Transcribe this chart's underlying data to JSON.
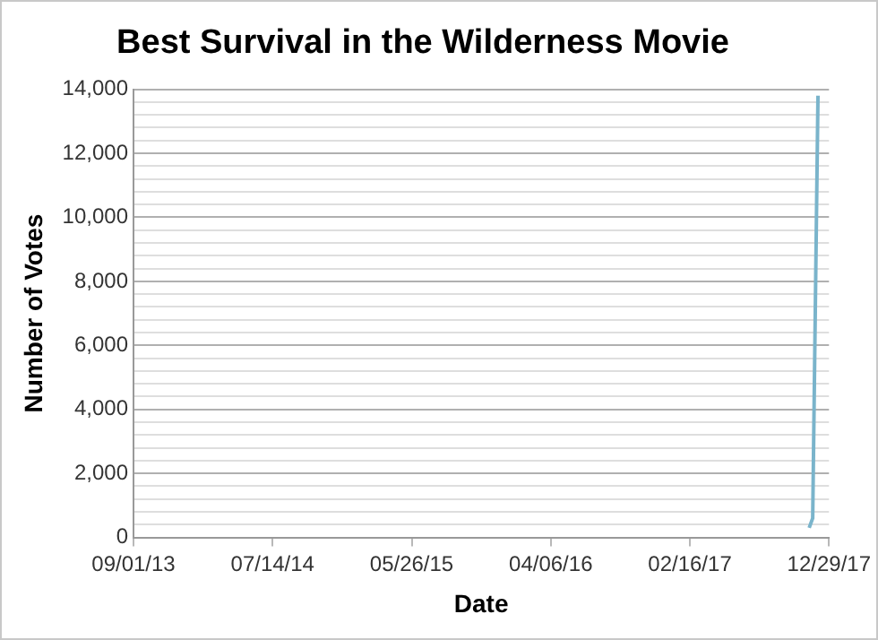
{
  "chart_data": {
    "type": "line",
    "title": "Best Survival in the Wilderness Movie",
    "xlabel": "Date",
    "ylabel": "Number of Votes",
    "x": [
      "2017-11-14",
      "2017-11-22",
      "2017-12-04"
    ],
    "series": [
      {
        "color": "#7ab4cb",
        "values": [
          300,
          600,
          13800
        ]
      }
    ],
    "xlim": [
      "2013-09-01",
      "2017-12-29"
    ],
    "xticks": [
      {
        "value": "2013-09-01",
        "label": "09/01/13"
      },
      {
        "value": "2014-07-14",
        "label": "07/14/14"
      },
      {
        "value": "2015-05-26",
        "label": "05/26/15"
      },
      {
        "value": "2016-04-06",
        "label": "04/06/16"
      },
      {
        "value": "2017-02-16",
        "label": "02/16/17"
      },
      {
        "value": "2017-12-29",
        "label": "12/29/17"
      }
    ],
    "ylim": [
      0,
      14000
    ],
    "yticks": [
      {
        "value": 0,
        "label": "0"
      },
      {
        "value": 400,
        "label": null
      },
      {
        "value": 800,
        "label": null
      },
      {
        "value": 1200,
        "label": null
      },
      {
        "value": 1600,
        "label": null
      },
      {
        "value": 2000,
        "label": "2,000"
      },
      {
        "value": 2400,
        "label": null
      },
      {
        "value": 2800,
        "label": null
      },
      {
        "value": 3200,
        "label": null
      },
      {
        "value": 3600,
        "label": null
      },
      {
        "value": 4000,
        "label": "4,000"
      },
      {
        "value": 4400,
        "label": null
      },
      {
        "value": 4800,
        "label": null
      },
      {
        "value": 5200,
        "label": null
      },
      {
        "value": 5600,
        "label": null
      },
      {
        "value": 6000,
        "label": "6,000"
      },
      {
        "value": 6400,
        "label": null
      },
      {
        "value": 6800,
        "label": null
      },
      {
        "value": 7200,
        "label": null
      },
      {
        "value": 7600,
        "label": null
      },
      {
        "value": 8000,
        "label": "8,000"
      },
      {
        "value": 8400,
        "label": null
      },
      {
        "value": 8800,
        "label": null
      },
      {
        "value": 9200,
        "label": null
      },
      {
        "value": 9600,
        "label": null
      },
      {
        "value": 10000,
        "label": "10,000"
      },
      {
        "value": 10400,
        "label": null
      },
      {
        "value": 10800,
        "label": null
      },
      {
        "value": 11200,
        "label": null
      },
      {
        "value": 11600,
        "label": null
      },
      {
        "value": 12000,
        "label": "12,000"
      },
      {
        "value": 12400,
        "label": null
      },
      {
        "value": 12800,
        "label": null
      },
      {
        "value": 13200,
        "label": null
      },
      {
        "value": 13600,
        "label": null
      },
      {
        "value": 14000,
        "label": "14,000"
      }
    ],
    "grid": "y",
    "legend": false,
    "marker": "none",
    "line_style": "solid"
  }
}
